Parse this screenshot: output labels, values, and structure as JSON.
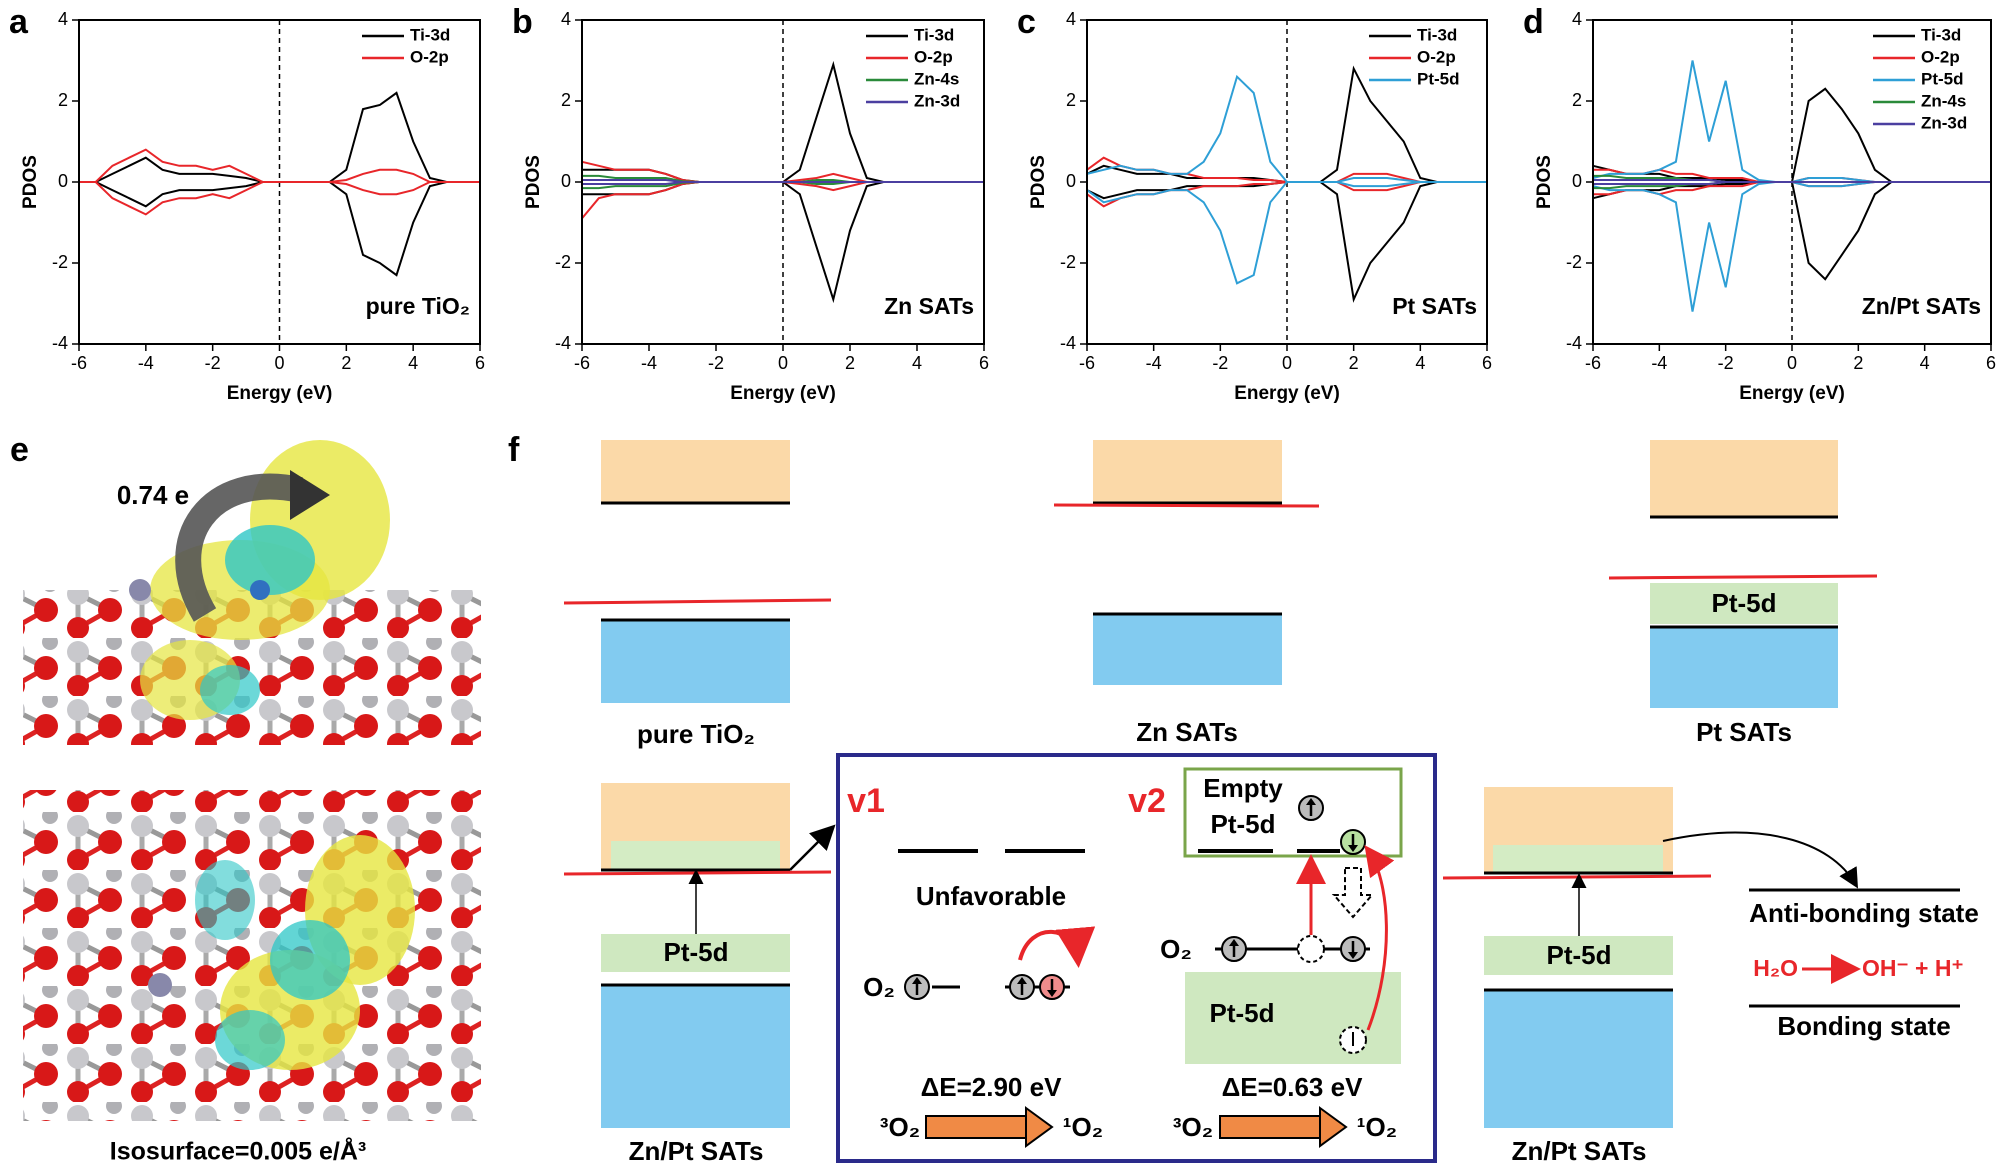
{
  "chart_data": [
    {
      "type": "line",
      "panel_label": "a",
      "annotation": "pure TiO₂",
      "xlabel": "Energy (eV)",
      "ylabel": "PDOS",
      "x": [
        -6,
        -5.5,
        -5,
        -4.5,
        -4,
        -3.5,
        -3,
        -2.5,
        -2,
        -1.5,
        -1,
        -0.5,
        0,
        0.5,
        1,
        1.5,
        2,
        2.5,
        3,
        3.5,
        4,
        4.5,
        5,
        5.5,
        6
      ],
      "xlim": [
        -6,
        6
      ],
      "ylim": [
        -4,
        4
      ],
      "xticks": [
        -6,
        -4,
        -2,
        0,
        2,
        4,
        6
      ],
      "yticks": [
        -4,
        -2,
        0,
        2,
        4
      ],
      "vline": 0,
      "series": [
        {
          "name": "Ti-3d",
          "color": "#000000",
          "values": [
            0,
            0,
            0.2,
            0.4,
            0.6,
            0.3,
            0.2,
            0.2,
            0.2,
            0.15,
            0.1,
            0,
            0,
            0,
            0,
            0,
            0.3,
            1.8,
            1.9,
            2.2,
            1.0,
            0.1,
            0,
            0,
            0
          ],
          "values_down": [
            0,
            0,
            -0.2,
            -0.4,
            -0.6,
            -0.3,
            -0.2,
            -0.2,
            -0.2,
            -0.15,
            -0.1,
            0,
            0,
            0,
            0,
            0,
            -0.3,
            -1.8,
            -2.0,
            -2.3,
            -1.0,
            -0.1,
            0,
            0,
            0
          ]
        },
        {
          "name": "O-2p",
          "color": "#e8262a",
          "values": [
            0,
            0,
            0.4,
            0.6,
            0.8,
            0.5,
            0.4,
            0.4,
            0.3,
            0.4,
            0.2,
            0,
            0,
            0,
            0,
            0,
            0.05,
            0.2,
            0.3,
            0.3,
            0.2,
            0,
            0,
            0,
            0
          ],
          "values_down": [
            0,
            0,
            -0.4,
            -0.6,
            -0.8,
            -0.5,
            -0.4,
            -0.4,
            -0.3,
            -0.4,
            -0.2,
            0,
            0,
            0,
            0,
            0,
            -0.05,
            -0.2,
            -0.3,
            -0.3,
            -0.2,
            0,
            0,
            0,
            0
          ]
        }
      ]
    },
    {
      "type": "line",
      "panel_label": "b",
      "annotation": "Zn SATs",
      "xlabel": "Energy (eV)",
      "ylabel": "PDOS",
      "x": [
        -6,
        -5.5,
        -5,
        -4.5,
        -4,
        -3.5,
        -3,
        -2.5,
        -2,
        -1.5,
        -1,
        -0.5,
        0,
        0.5,
        1,
        1.5,
        2,
        2.5,
        3,
        3.5,
        4,
        4.5,
        5,
        5.5,
        6
      ],
      "xlim": [
        -6,
        6
      ],
      "ylim": [
        -4,
        4
      ],
      "xticks": [
        -6,
        -4,
        -2,
        0,
        2,
        4,
        6
      ],
      "yticks": [
        -4,
        -2,
        0,
        2,
        4
      ],
      "vline": 0,
      "series": [
        {
          "name": "Ti-3d",
          "color": "#000000",
          "values": [
            0.3,
            0.3,
            0.3,
            0.3,
            0.3,
            0.2,
            0.05,
            0,
            0,
            0,
            0,
            0,
            0,
            0.3,
            1.6,
            2.9,
            1.2,
            0.1,
            0,
            0,
            0,
            0,
            0,
            0,
            0
          ],
          "values_down": [
            -0.3,
            -0.3,
            -0.3,
            -0.3,
            -0.3,
            -0.2,
            -0.05,
            0,
            0,
            0,
            0,
            0,
            0,
            -0.3,
            -1.6,
            -2.9,
            -1.2,
            -0.1,
            0,
            0,
            0,
            0,
            0,
            0,
            0
          ]
        },
        {
          "name": "O-2p",
          "color": "#e8262a",
          "values": [
            0.5,
            0.4,
            0.3,
            0.3,
            0.3,
            0.2,
            0.05,
            0,
            0,
            0,
            0,
            0,
            0,
            0.05,
            0.1,
            0.2,
            0.1,
            0,
            0,
            0,
            0,
            0,
            0,
            0,
            0
          ],
          "values_down": [
            -0.9,
            -0.4,
            -0.3,
            -0.3,
            -0.3,
            -0.2,
            -0.05,
            0,
            0,
            0,
            0,
            0,
            0,
            -0.05,
            -0.1,
            -0.2,
            -0.1,
            0,
            0,
            0,
            0,
            0,
            0,
            0,
            0
          ]
        },
        {
          "name": "Zn-4s",
          "color": "#2a8a3a",
          "values": [
            0.15,
            0.15,
            0.1,
            0.1,
            0.1,
            0.1,
            0.02,
            0,
            0,
            0,
            0,
            0,
            0,
            0,
            0.05,
            0.05,
            0,
            0,
            0,
            0,
            0,
            0,
            0,
            0,
            0
          ],
          "values_down": [
            -0.15,
            -0.15,
            -0.1,
            -0.1,
            -0.1,
            -0.1,
            -0.02,
            0,
            0,
            0,
            0,
            0,
            0,
            0,
            -0.05,
            -0.05,
            0,
            0,
            0,
            0,
            0,
            0,
            0,
            0,
            0
          ]
        },
        {
          "name": "Zn-3d",
          "color": "#4b3fa0",
          "values": [
            0.05,
            0.05,
            0.05,
            0.05,
            0.05,
            0.05,
            0,
            0,
            0,
            0,
            0,
            0,
            0,
            0,
            0,
            0,
            0,
            0,
            0,
            0,
            0,
            0,
            0,
            0,
            0
          ],
          "values_down": [
            -0.05,
            -0.05,
            -0.05,
            -0.05,
            -0.05,
            -0.05,
            0,
            0,
            0,
            0,
            0,
            0,
            0,
            0,
            0,
            0,
            0,
            0,
            0,
            0,
            0,
            0,
            0,
            0,
            0
          ]
        }
      ]
    },
    {
      "type": "line",
      "panel_label": "c",
      "annotation": "Pt SATs",
      "xlabel": "Energy (eV)",
      "ylabel": "PDOS",
      "x": [
        -6,
        -5.5,
        -5,
        -4.5,
        -4,
        -3.5,
        -3,
        -2.5,
        -2,
        -1.5,
        -1,
        -0.5,
        0,
        0.5,
        1,
        1.5,
        2,
        2.5,
        3,
        3.5,
        4,
        4.5,
        5,
        5.5,
        6
      ],
      "xlim": [
        -6,
        6
      ],
      "ylim": [
        -4,
        4
      ],
      "xticks": [
        -6,
        -4,
        -2,
        0,
        2,
        4,
        6
      ],
      "yticks": [
        -4,
        -2,
        0,
        2,
        4
      ],
      "vline": 0,
      "series": [
        {
          "name": "Ti-3d",
          "color": "#000000",
          "values": [
            0.2,
            0.4,
            0.3,
            0.2,
            0.2,
            0.2,
            0.1,
            0.1,
            0.1,
            0.1,
            0.1,
            0.05,
            0,
            0,
            0,
            0.3,
            2.8,
            2.0,
            1.5,
            1.0,
            0.1,
            0,
            0,
            0,
            0
          ],
          "values_down": [
            -0.2,
            -0.4,
            -0.3,
            -0.2,
            -0.2,
            -0.2,
            -0.1,
            -0.1,
            -0.1,
            -0.1,
            -0.1,
            -0.05,
            0,
            0,
            0,
            -0.3,
            -2.9,
            -2.0,
            -1.5,
            -1.0,
            -0.1,
            0,
            0,
            0,
            0
          ]
        },
        {
          "name": "O-2p",
          "color": "#e8262a",
          "values": [
            0.3,
            0.6,
            0.4,
            0.3,
            0.3,
            0.2,
            0.2,
            0.1,
            0.1,
            0.1,
            0.05,
            0.05,
            0,
            0,
            0,
            0,
            0.2,
            0.2,
            0.2,
            0.1,
            0,
            0,
            0,
            0,
            0
          ],
          "values_down": [
            -0.3,
            -0.6,
            -0.4,
            -0.3,
            -0.3,
            -0.2,
            -0.2,
            -0.1,
            -0.1,
            -0.1,
            -0.05,
            -0.05,
            0,
            0,
            0,
            0,
            -0.2,
            -0.2,
            -0.2,
            -0.1,
            0,
            0,
            0,
            0,
            0
          ]
        },
        {
          "name": "Pt-5d",
          "color": "#2e9fd6",
          "values": [
            0.2,
            0.3,
            0.4,
            0.3,
            0.3,
            0.2,
            0.2,
            0.5,
            1.2,
            2.6,
            2.2,
            0.5,
            0,
            0,
            0,
            0,
            0.1,
            0.1,
            0.1,
            0.05,
            0,
            0,
            0,
            0,
            0
          ],
          "values_down": [
            -0.2,
            -0.5,
            -0.4,
            -0.3,
            -0.3,
            -0.2,
            -0.2,
            -0.5,
            -1.2,
            -2.5,
            -2.3,
            -0.5,
            0,
            0,
            0,
            0,
            -0.1,
            -0.1,
            -0.1,
            -0.05,
            0,
            0,
            0,
            0,
            0
          ]
        }
      ]
    },
    {
      "type": "line",
      "panel_label": "d",
      "annotation": "Zn/Pt SATs",
      "xlabel": "Energy (eV)",
      "ylabel": "PDOS",
      "x": [
        -6,
        -5.5,
        -5,
        -4.5,
        -4,
        -3.5,
        -3,
        -2.5,
        -2,
        -1.5,
        -1,
        -0.5,
        0,
        0.5,
        1,
        1.5,
        2,
        2.5,
        3,
        3.5,
        4,
        4.5,
        5,
        5.5,
        6
      ],
      "xlim": [
        -6,
        6
      ],
      "ylim": [
        -4,
        4
      ],
      "xticks": [
        -6,
        -4,
        -2,
        0,
        2,
        4,
        6
      ],
      "yticks": [
        -4,
        -2,
        0,
        2,
        4
      ],
      "vline": 0,
      "series": [
        {
          "name": "Ti-3d",
          "color": "#000000",
          "values": [
            0.4,
            0.3,
            0.2,
            0.2,
            0.2,
            0.1,
            0.1,
            0.1,
            0.05,
            0.05,
            0,
            0,
            0,
            2.0,
            2.3,
            1.8,
            1.2,
            0.3,
            0,
            0,
            0,
            0,
            0,
            0,
            0
          ],
          "values_down": [
            -0.4,
            -0.3,
            -0.2,
            -0.2,
            -0.2,
            -0.1,
            -0.1,
            -0.1,
            -0.05,
            -0.05,
            0,
            0,
            0,
            -2.0,
            -2.4,
            -1.8,
            -1.2,
            -0.3,
            0,
            0,
            0,
            0,
            0,
            0,
            0
          ]
        },
        {
          "name": "O-2p",
          "color": "#e8262a",
          "values": [
            0.3,
            0.3,
            0.2,
            0.2,
            0.3,
            0.2,
            0.2,
            0.1,
            0.1,
            0.1,
            0,
            0,
            0,
            0.1,
            0.1,
            0.1,
            0.05,
            0,
            0,
            0,
            0,
            0,
            0,
            0,
            0
          ],
          "values_down": [
            -0.3,
            -0.3,
            -0.2,
            -0.2,
            -0.3,
            -0.2,
            -0.2,
            -0.1,
            -0.1,
            -0.1,
            0,
            0,
            0,
            -0.1,
            -0.1,
            -0.1,
            -0.05,
            0,
            0,
            0,
            0,
            0,
            0,
            0,
            0
          ]
        },
        {
          "name": "Pt-5d",
          "color": "#2e9fd6",
          "values": [
            0.1,
            0.2,
            0.2,
            0.2,
            0.3,
            0.5,
            3.0,
            1.0,
            2.5,
            0.3,
            0.05,
            0,
            0,
            0.1,
            0.1,
            0.1,
            0.05,
            0,
            0,
            0,
            0,
            0,
            0,
            0,
            0
          ],
          "values_down": [
            -0.1,
            -0.2,
            -0.2,
            -0.2,
            -0.3,
            -0.5,
            -3.2,
            -1.0,
            -2.6,
            -0.3,
            -0.05,
            0,
            0,
            -0.1,
            -0.1,
            -0.1,
            -0.05,
            0,
            0,
            0,
            0,
            0,
            0,
            0,
            0
          ]
        },
        {
          "name": "Zn-4s",
          "color": "#2a8a3a",
          "values": [
            0.15,
            0.15,
            0.1,
            0.1,
            0.1,
            0.1,
            0.05,
            0.05,
            0,
            0,
            0,
            0,
            0,
            0,
            0,
            0,
            0,
            0,
            0,
            0,
            0,
            0,
            0,
            0,
            0
          ],
          "values_down": [
            -0.15,
            -0.15,
            -0.1,
            -0.1,
            -0.1,
            -0.1,
            -0.05,
            -0.05,
            0,
            0,
            0,
            0,
            0,
            0,
            0,
            0,
            0,
            0,
            0,
            0,
            0,
            0,
            0,
            0,
            0
          ]
        },
        {
          "name": "Zn-3d",
          "color": "#4b3fa0",
          "values": [
            0.05,
            0.05,
            0.05,
            0.05,
            0.05,
            0.05,
            0.05,
            0.05,
            0,
            0,
            0,
            0,
            0,
            0,
            0,
            0,
            0,
            0,
            0,
            0,
            0,
            0,
            0,
            0,
            0
          ],
          "values_down": [
            -0.05,
            -0.05,
            -0.05,
            -0.05,
            -0.05,
            -0.05,
            -0.05,
            -0.05,
            0,
            0,
            0,
            0,
            0,
            0,
            0,
            0,
            0,
            0,
            0,
            0,
            0,
            0,
            0,
            0,
            0
          ]
        }
      ]
    }
  ],
  "panel_e": {
    "label": "e",
    "charge": "0.74 e",
    "isosurface": "Isosurface=0.005 e/Å³"
  },
  "panel_f": {
    "label": "f",
    "labels": {
      "pure": "pure TiO₂",
      "zn": "Zn SATs",
      "pt": "Pt SATs",
      "znpt_left": "Zn/Pt SATs",
      "znpt_right": "Zn/Pt SATs",
      "pt5d_pt": "Pt-5d",
      "pt5d_left": "Pt-5d",
      "pt5d_right": "Pt-5d"
    },
    "inset": {
      "v1": "v1",
      "v2": "v2",
      "unfavorable": "Unfavorable",
      "empty": "Empty",
      "empty_pt5d": "Pt-5d",
      "o2_v1": "O₂",
      "o2_v2": "O₂",
      "pt5d_band": "Pt-5d",
      "de_v1": "ΔE=2.90 eV",
      "de_v2": "ΔE=0.63 eV",
      "triplet_v1": "³O₂",
      "singlet_v1": "¹O₂",
      "triplet_v2": "³O₂",
      "singlet_v2": "¹O₂"
    },
    "reaction": {
      "antibonding": "Anti-bonding state",
      "reactant": "H₂O",
      "products": "OH⁻ + H⁺",
      "bonding": "Bonding state"
    }
  }
}
